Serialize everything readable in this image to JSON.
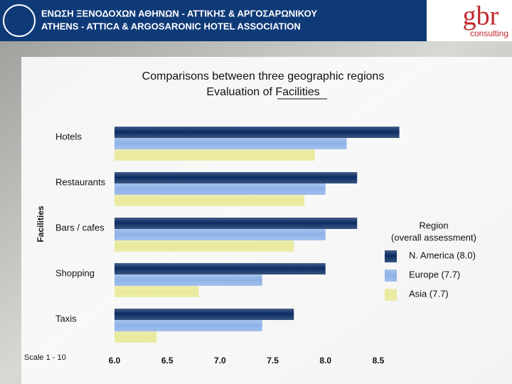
{
  "header": {
    "org_greek": "ΕΝΩΣΗ ΞΕΝΟΔΟΧΩΝ ΑΘΗΝΩΝ - ΑΤΤΙΚΗΣ & ΑΡΓΟΣΑΡΩΝΙΚΟΥ",
    "org_english": "ATHENS - ATTICA & ARGOSARONIC HOTEL ASSOCIATION",
    "brand": "gbr",
    "brand_sub": "consulting"
  },
  "chart_data": {
    "type": "hbar",
    "title": [
      "Comparisons between three geographic regions",
      "Evaluation of Facilities"
    ],
    "y_label": "Facilities",
    "note": "Scale 1 - 10",
    "legend_title": [
      "Region",
      "(overall assessment)"
    ],
    "categories": [
      "Hotels",
      "Restaurants",
      "Bars / cafes",
      "Shopping",
      "Taxis"
    ],
    "series": [
      {
        "name": "N. America (8.0)",
        "color": "#0b2c63",
        "values": [
          8.7,
          8.3,
          8.3,
          8.0,
          7.7
        ]
      },
      {
        "name": "Europe (7.7)",
        "color": "#8db2e8",
        "values": [
          8.2,
          8.0,
          8.0,
          7.4,
          7.4
        ]
      },
      {
        "name": "Asia (7.7)",
        "color": "#e9e99a",
        "values": [
          7.9,
          7.8,
          7.7,
          6.8,
          6.4
        ]
      }
    ],
    "xlim": [
      6,
      8.75
    ],
    "xticks": [
      {
        "value": 6,
        "label": "6.0"
      },
      {
        "value": 6.5,
        "label": "6.5"
      },
      {
        "value": 7,
        "label": "7.0"
      },
      {
        "value": 7.5,
        "label": "7.5"
      },
      {
        "value": 8,
        "label": "8.0"
      },
      {
        "value": 8.5,
        "label": "8.5"
      }
    ],
    "grid": false
  }
}
